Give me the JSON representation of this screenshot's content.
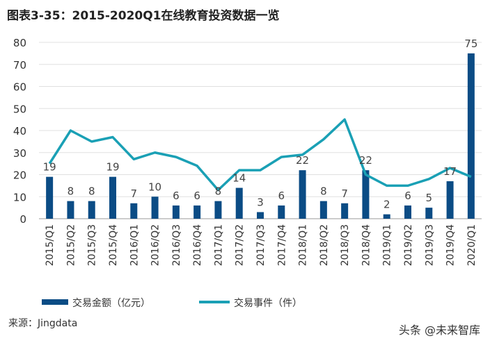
{
  "title": "图表3-35：2015-2020Q1在线教育投资数据一览",
  "source": "来源：Jingdata",
  "watermark": "头条 @未来智库",
  "chart_data": {
    "type": "bar+line",
    "categories": [
      "2015/Q1",
      "2015/Q2",
      "2015/Q3",
      "2015/Q4",
      "2016/Q1",
      "2016/Q2",
      "2016/Q3",
      "2016/Q4",
      "2017/Q1",
      "2017/Q2",
      "2017/Q3",
      "2017/Q4",
      "2018/Q1",
      "2018/Q2",
      "2018/Q3",
      "2018/Q4",
      "2019/Q1",
      "2019/Q2",
      "2019/Q3",
      "2019/Q4",
      "2020/Q1"
    ],
    "series": [
      {
        "name": "交易金额（亿元）",
        "type": "bar",
        "color": "#0b4c85",
        "values": [
          19,
          8,
          8,
          19,
          7,
          10,
          6,
          6,
          8,
          14,
          3,
          6,
          22,
          8,
          7,
          22,
          2,
          6,
          5,
          17,
          75
        ]
      },
      {
        "name": "交易事件（件）",
        "type": "line",
        "color": "#1aa0b5",
        "values": [
          25,
          40,
          35,
          37,
          27,
          30,
          28,
          24,
          13,
          22,
          22,
          28,
          29,
          36,
          45,
          20,
          15,
          15,
          18,
          23,
          19
        ]
      }
    ],
    "ylim": [
      0,
      80
    ],
    "yticks": [
      0,
      10,
      20,
      30,
      40,
      50,
      60,
      70,
      80
    ],
    "grid": true,
    "legend": "bottom"
  }
}
